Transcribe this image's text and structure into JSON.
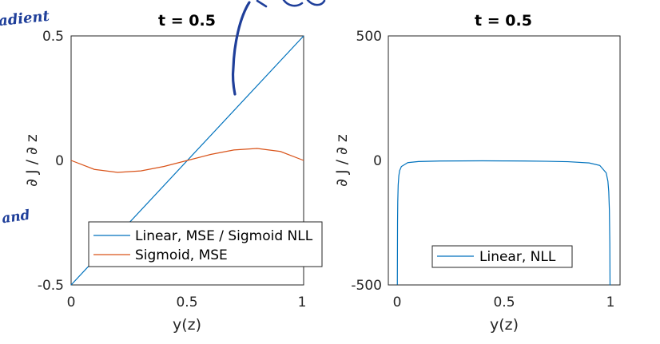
{
  "colors": {
    "blue": "#0072BD",
    "orange": "#D95319",
    "ink": "#1f3f9a"
  },
  "annotations": {
    "left_top": "adient",
    "left_mid": "and"
  },
  "chart_data": [
    {
      "type": "line",
      "title": "t = 0.5",
      "xlabel": "y(z)",
      "ylabel": "∂ J / ∂ z",
      "xlim": [
        0,
        1
      ],
      "ylim": [
        -0.5,
        0.5
      ],
      "xticks": [
        "0",
        "0.5",
        "1"
      ],
      "yticks": [
        "-0.5",
        "0",
        "0.5"
      ],
      "legend_position": "bottom-right",
      "series": [
        {
          "name": "Linear, MSE / Sigmoid  NLL",
          "color": "#0072BD",
          "x": [
            0,
            1
          ],
          "y": [
            -0.5,
            0.5
          ]
        },
        {
          "name": "Sigmoid, MSE",
          "color": "#D95319",
          "x": [
            0,
            0.1,
            0.2,
            0.3,
            0.4,
            0.5,
            0.6,
            0.7,
            0.8,
            0.9,
            1.0
          ],
          "y": [
            0,
            -0.036,
            -0.048,
            -0.042,
            -0.024,
            0,
            0.024,
            0.042,
            0.048,
            0.036,
            0
          ]
        }
      ]
    },
    {
      "type": "line",
      "title": "t = 0.5",
      "xlabel": "y(z)",
      "ylabel": "∂ J / ∂ z",
      "xlim": [
        0,
        1
      ],
      "ylim": [
        -500,
        500
      ],
      "xticks": [
        "0",
        "0.5",
        "1"
      ],
      "yticks": [
        "-500",
        "0",
        "500"
      ],
      "legend_position": "bottom-center",
      "series": [
        {
          "name": "Linear, NLL",
          "color": "#0072BD",
          "x": [
            0.001,
            0.002,
            0.003,
            0.005,
            0.008,
            0.012,
            0.02,
            0.05,
            0.1,
            0.2,
            0.3,
            0.4,
            0.5,
            0.6,
            0.7,
            0.8,
            0.9,
            0.95,
            0.98,
            0.988,
            0.992,
            0.995,
            0.997,
            0.998,
            0.999
          ],
          "y": [
            -499,
            -249,
            -166,
            -99,
            -61.5,
            -40.5,
            -24.5,
            -8.77,
            -4.44,
            -2.5,
            -1.9,
            -1.67,
            -2,
            -2.5,
            -3.33,
            -5,
            -10,
            -20,
            -50,
            -83.3,
            -125,
            -200,
            -333,
            -500,
            -1000
          ]
        }
      ]
    }
  ]
}
